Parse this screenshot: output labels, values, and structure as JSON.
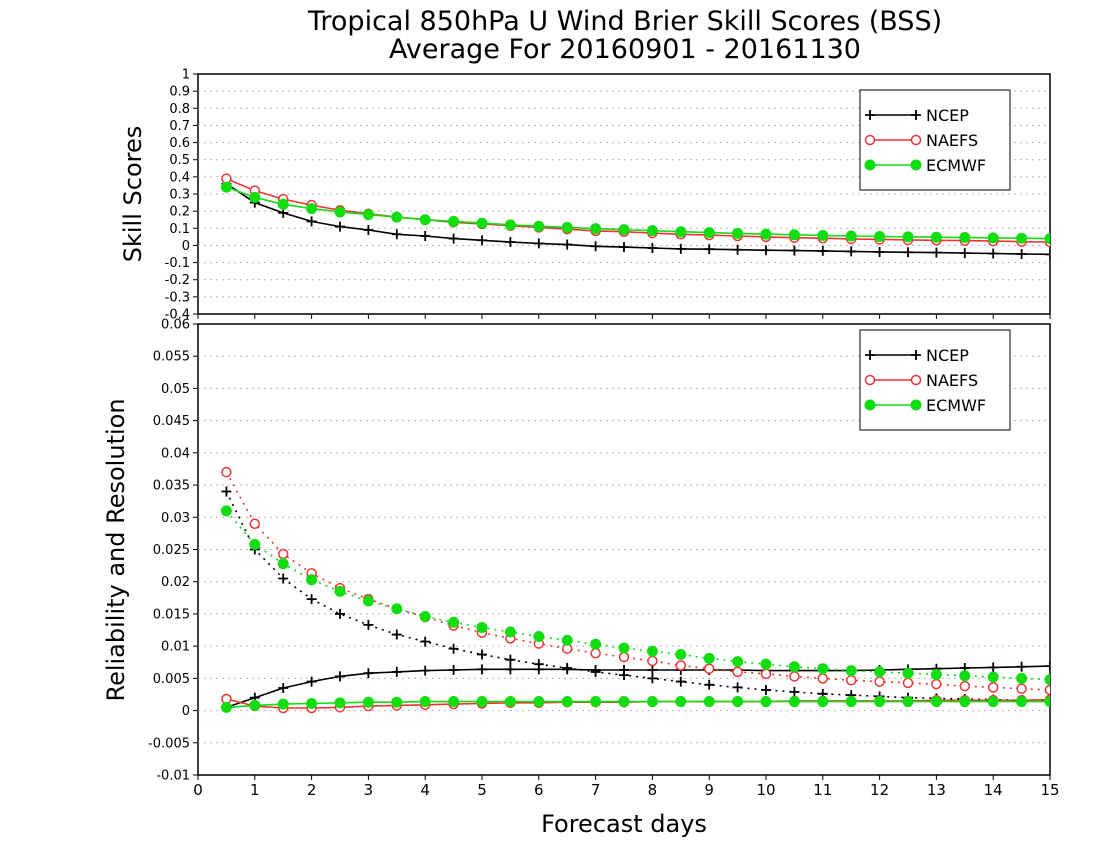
{
  "title_line1": "Tropical 850hPa U Wind Brier Skill Scores (BSS)",
  "title_line2": "Average For 20160901 - 20161130",
  "xlabel": "Forecast days",
  "colors": {
    "NCEP": "#000000",
    "NAEFS": "#ee3333",
    "ECMWF": "#11dd11"
  },
  "chart_data": [
    {
      "type": "line",
      "ylabel": "Skill Scores",
      "xlim": [
        0,
        15
      ],
      "ylim": [
        -0.4,
        1
      ],
      "x_ticks": [
        0,
        1,
        2,
        3,
        4,
        5,
        6,
        7,
        8,
        9,
        10,
        11,
        12,
        13,
        14,
        15
      ],
      "y_ticks": [
        "-0.4",
        "-0.3",
        "-0.2",
        "-0.1",
        "0",
        "0.1",
        "0.2",
        "0.3",
        "0.4",
        "0.5",
        "0.6",
        "0.7",
        "0.8",
        "0.9",
        "1"
      ],
      "grid": true,
      "legend_position": "top-right",
      "x": [
        0.5,
        1,
        1.5,
        2,
        2.5,
        3,
        3.5,
        4,
        4.5,
        5,
        5.5,
        6,
        6.5,
        7,
        7.5,
        8,
        8.5,
        9,
        9.5,
        10,
        10.5,
        11,
        11.5,
        12,
        12.5,
        13,
        13.5,
        14,
        14.5,
        15
      ],
      "series": [
        {
          "name": "NCEP",
          "marker": "plus",
          "values": [
            0.36,
            0.25,
            0.19,
            0.14,
            0.11,
            0.09,
            0.065,
            0.055,
            0.04,
            0.03,
            0.02,
            0.012,
            0.005,
            -0.005,
            -0.01,
            -0.015,
            -0.02,
            -0.022,
            -0.025,
            -0.028,
            -0.03,
            -0.032,
            -0.035,
            -0.038,
            -0.04,
            -0.042,
            -0.045,
            -0.047,
            -0.05,
            -0.052
          ]
        },
        {
          "name": "NAEFS",
          "marker": "open-circle",
          "values": [
            0.39,
            0.32,
            0.27,
            0.235,
            0.205,
            0.185,
            0.165,
            0.15,
            0.135,
            0.125,
            0.115,
            0.105,
            0.095,
            0.085,
            0.08,
            0.072,
            0.065,
            0.06,
            0.055,
            0.05,
            0.045,
            0.042,
            0.038,
            0.035,
            0.032,
            0.03,
            0.028,
            0.025,
            0.022,
            0.02
          ]
        },
        {
          "name": "ECMWF",
          "marker": "filled-circle",
          "values": [
            0.34,
            0.28,
            0.24,
            0.215,
            0.195,
            0.18,
            0.165,
            0.15,
            0.14,
            0.13,
            0.12,
            0.112,
            0.105,
            0.098,
            0.092,
            0.086,
            0.08,
            0.075,
            0.07,
            0.066,
            0.062,
            0.058,
            0.055,
            0.052,
            0.05,
            0.048,
            0.046,
            0.044,
            0.042,
            0.04
          ]
        }
      ]
    },
    {
      "type": "line",
      "ylabel": "Reliability and Resolution",
      "xlim": [
        0,
        15
      ],
      "ylim": [
        -0.01,
        0.06
      ],
      "x_ticks": [
        0,
        1,
        2,
        3,
        4,
        5,
        6,
        7,
        8,
        9,
        10,
        11,
        12,
        13,
        14,
        15
      ],
      "y_ticks": [
        "-0.01",
        "-0.005",
        "0",
        "0.005",
        "0.01",
        "0.015",
        "0.02",
        "0.025",
        "0.03",
        "0.035",
        "0.04",
        "0.045",
        "0.05",
        "0.055",
        "0.06"
      ],
      "grid": true,
      "legend_position": "top-right",
      "x": [
        0.5,
        1,
        1.5,
        2,
        2.5,
        3,
        3.5,
        4,
        4.5,
        5,
        5.5,
        6,
        6.5,
        7,
        7.5,
        8,
        8.5,
        9,
        9.5,
        10,
        10.5,
        11,
        11.5,
        12,
        12.5,
        13,
        13.5,
        14,
        14.5,
        15
      ],
      "series": [
        {
          "name": "NCEP",
          "marker": "plus",
          "values": [
            0.0005,
            0.002,
            0.0035,
            0.0045,
            0.0053,
            0.0058,
            0.006,
            0.0062,
            0.0063,
            0.0064,
            0.0064,
            0.0064,
            0.0064,
            0.0063,
            0.0063,
            0.0063,
            0.0063,
            0.0063,
            0.0063,
            0.0062,
            0.0062,
            0.0062,
            0.0062,
            0.0063,
            0.0064,
            0.0065,
            0.0066,
            0.0067,
            0.0068,
            0.0069
          ]
        },
        {
          "name": "NCEP",
          "marker": "plus",
          "style": "dotted",
          "values": [
            0.034,
            0.025,
            0.0205,
            0.0173,
            0.015,
            0.0133,
            0.0118,
            0.0107,
            0.0096,
            0.0087,
            0.0079,
            0.0072,
            0.0066,
            0.006,
            0.0055,
            0.005,
            0.0045,
            0.004,
            0.0036,
            0.0032,
            0.0029,
            0.0026,
            0.0024,
            0.0022,
            0.002,
            0.0019,
            0.0018,
            0.0017,
            0.0016,
            0.0015
          ]
        },
        {
          "name": "NAEFS",
          "marker": "open-circle",
          "values": [
            0.0018,
            0.0007,
            0.0004,
            0.0004,
            0.0005,
            0.0007,
            0.0008,
            0.0009,
            0.001,
            0.0011,
            0.0012,
            0.0012,
            0.0013,
            0.0013,
            0.0013,
            0.0014,
            0.0014,
            0.0014,
            0.0014,
            0.0014,
            0.0015,
            0.0015,
            0.0015,
            0.0015,
            0.0015,
            0.0016,
            0.0016,
            0.0016,
            0.0016,
            0.0017
          ]
        },
        {
          "name": "NAEFS",
          "marker": "open-circle",
          "style": "dotted",
          "values": [
            0.037,
            0.029,
            0.0243,
            0.0213,
            0.019,
            0.0173,
            0.0158,
            0.0145,
            0.0132,
            0.0121,
            0.0112,
            0.0104,
            0.0096,
            0.0089,
            0.0083,
            0.0077,
            0.007,
            0.0065,
            0.006,
            0.0057,
            0.0053,
            0.005,
            0.0047,
            0.0045,
            0.0043,
            0.0041,
            0.0038,
            0.0036,
            0.0034,
            0.0032
          ]
        },
        {
          "name": "ECMWF",
          "marker": "filled-circle",
          "values": [
            0.0005,
            0.0008,
            0.001,
            0.0011,
            0.0012,
            0.0013,
            0.0013,
            0.0014,
            0.0014,
            0.0014,
            0.0014,
            0.0014,
            0.0014,
            0.0014,
            0.0014,
            0.0014,
            0.0014,
            0.0014,
            0.0014,
            0.0014,
            0.0014,
            0.0014,
            0.0014,
            0.0014,
            0.0014,
            0.0014,
            0.0014,
            0.0014,
            0.0014,
            0.0014
          ]
        },
        {
          "name": "ECMWF",
          "marker": "filled-circle",
          "style": "dotted",
          "values": [
            0.031,
            0.0258,
            0.0228,
            0.0203,
            0.0185,
            0.017,
            0.0158,
            0.0146,
            0.0137,
            0.0129,
            0.0122,
            0.0115,
            0.0109,
            0.0103,
            0.0097,
            0.0092,
            0.0087,
            0.0081,
            0.0076,
            0.0072,
            0.0068,
            0.0065,
            0.0062,
            0.006,
            0.0058,
            0.0056,
            0.0054,
            0.0052,
            0.005,
            0.0048
          ]
        }
      ]
    }
  ],
  "legend": [
    {
      "name": "NCEP",
      "marker": "plus"
    },
    {
      "name": "NAEFS",
      "marker": "open-circle"
    },
    {
      "name": "ECMWF",
      "marker": "filled-circle"
    }
  ]
}
